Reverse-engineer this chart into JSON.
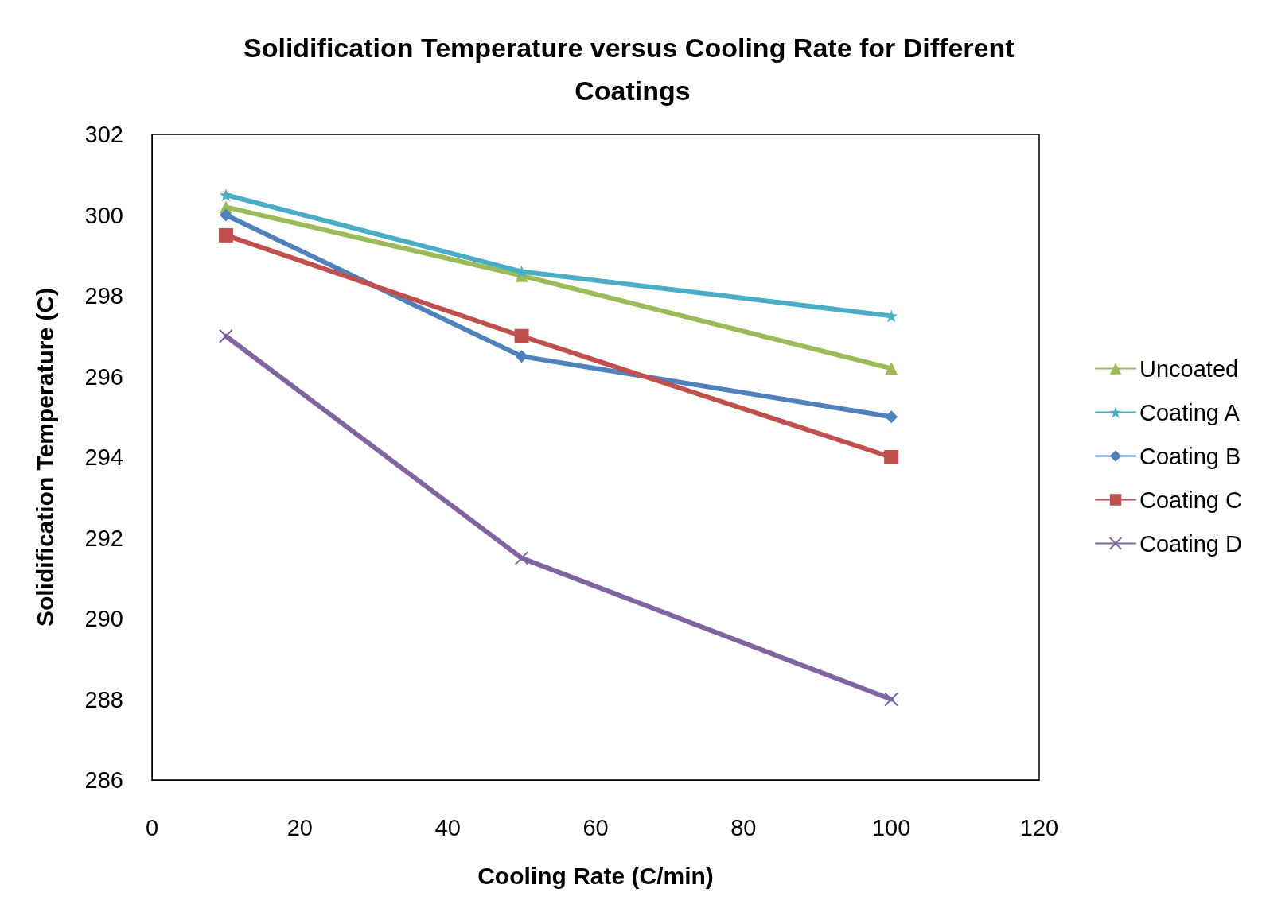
{
  "chart_data": {
    "type": "line",
    "title": "Solidification Temperature versus Cooling Rate for Different Coatings",
    "xlabel": "Cooling Rate (C/min)",
    "ylabel": "Solidification Temperature (C)",
    "x": [
      10,
      50,
      100
    ],
    "series": [
      {
        "name": "Uncoated",
        "color": "#9bbb59",
        "marker": "triangle",
        "values": [
          300.2,
          298.5,
          296.2
        ]
      },
      {
        "name": "Coating A",
        "color": "#4bacc6",
        "marker": "star",
        "values": [
          300.5,
          298.6,
          297.5
        ]
      },
      {
        "name": "Coating B",
        "color": "#4f81bd",
        "marker": "diamond",
        "values": [
          300.0,
          296.5,
          295.0
        ]
      },
      {
        "name": "Coating C",
        "color": "#c0504d",
        "marker": "square",
        "values": [
          299.5,
          297.0,
          294.0
        ]
      },
      {
        "name": "Coating D",
        "color": "#8064a2",
        "marker": "cross",
        "values": [
          297.0,
          291.5,
          288.0
        ]
      }
    ],
    "xlim": [
      0,
      120
    ],
    "xticks": [
      0,
      20,
      40,
      60,
      80,
      100,
      120
    ],
    "ylim": [
      286,
      302
    ],
    "yticks": [
      286,
      288,
      290,
      292,
      294,
      296,
      298,
      300,
      302
    ],
    "grid": false,
    "legend": "right",
    "line_style": "solid"
  }
}
